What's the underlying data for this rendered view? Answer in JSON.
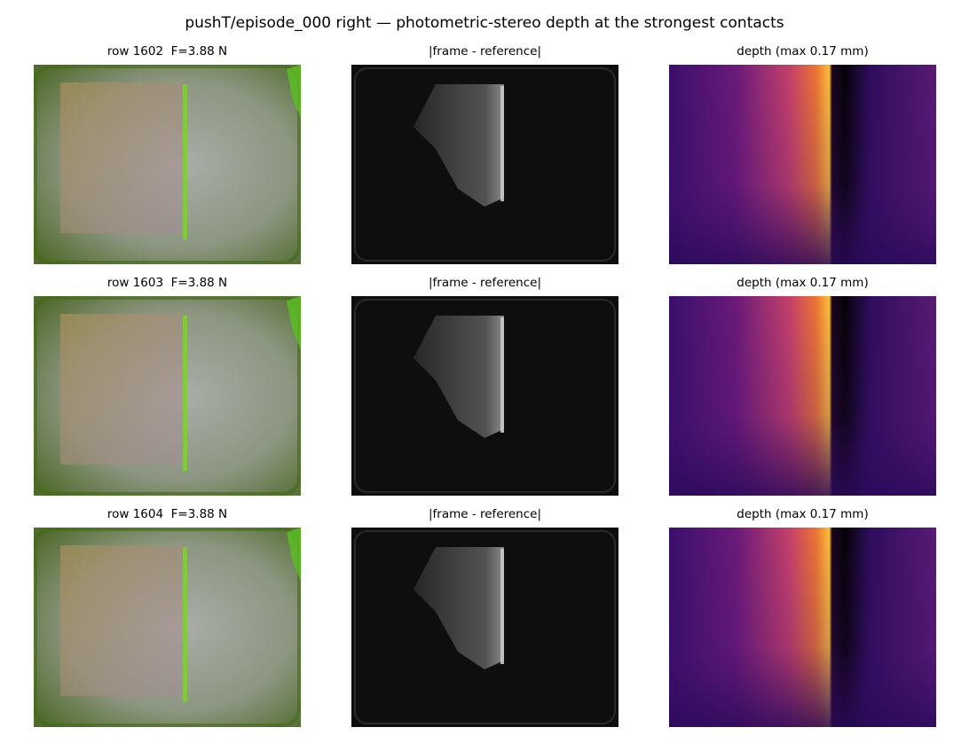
{
  "title": "pushT/episode_000 right — photometric-stereo depth at the strongest contacts",
  "rows": [
    {
      "panels": [
        "row 1602  F=3.88 N",
        "|frame - reference|",
        "depth (max 0.17 mm)"
      ]
    },
    {
      "panels": [
        "row 1603  F=3.88 N",
        "|frame - reference|",
        "depth (max 0.17 mm)"
      ]
    },
    {
      "panels": [
        "row 1604  F=3.88 N",
        "|frame - reference|",
        "depth (max 0.17 mm)"
      ]
    }
  ]
}
